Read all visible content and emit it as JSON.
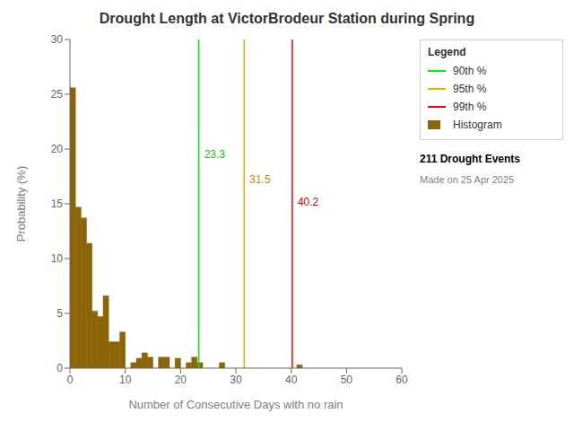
{
  "chart_data": {
    "type": "histogram",
    "title": "Drought Length at VictorBrodeur Station during Spring",
    "xlabel": "Number of Consecutive Days with no rain",
    "ylabel": "Probability (%)",
    "name": "Histogram",
    "color": "#8B6508",
    "bins": [
      0,
      1,
      2,
      3,
      4,
      5,
      6,
      7,
      8,
      9,
      10,
      11,
      12,
      13,
      14,
      15,
      16,
      17,
      18,
      19,
      20,
      21,
      22,
      23,
      24,
      25,
      26,
      27,
      28,
      29,
      30,
      31,
      32,
      33,
      34,
      35,
      36,
      37,
      38,
      39,
      40,
      41,
      42,
      43,
      44,
      45,
      46,
      47,
      48,
      49,
      50,
      51,
      52,
      53,
      54,
      55,
      56,
      57,
      58,
      59,
      60
    ],
    "values": [
      25.6,
      14.7,
      13.7,
      11.4,
      5.2,
      4.7,
      6.6,
      2.4,
      2.4,
      3.3,
      0.0,
      0.5,
      0.9,
      1.4,
      1.0,
      0.0,
      1.0,
      1.0,
      0.0,
      0.9,
      0.0,
      0.5,
      1.0,
      0.5,
      0.0,
      0.0,
      0.0,
      0.5,
      0.0,
      0.0,
      0.0,
      0.0,
      0.0,
      0.0,
      0.0,
      0.0,
      0.0,
      0.0,
      0.0,
      0.0,
      0.0,
      0.3,
      0.0,
      0.0,
      0.0,
      0.0,
      0.0,
      0.0,
      0.0,
      0.0,
      0.0,
      0.0,
      0.0,
      0.0,
      0.0,
      0.0,
      0.0,
      0.0,
      0.0,
      0.0
    ],
    "xlim": [
      0,
      60
    ],
    "ylim": [
      0,
      30
    ],
    "xticks": [
      0,
      10,
      20,
      30,
      40,
      50,
      60
    ],
    "yticks": [
      0,
      5,
      10,
      15,
      20,
      25,
      30
    ],
    "grid": false,
    "legend": "right",
    "legend_title": "Legend",
    "lines": [
      {
        "name": "90th %",
        "x": 23.3,
        "color": "#00ee00",
        "label": "23.3",
        "label_y": 19.5,
        "label_color": "#00cc00"
      },
      {
        "name": "95th %",
        "x": 31.5,
        "color": "#ffa500",
        "label": "31.5",
        "label_y": 17.2,
        "label_color": "#cc8800"
      },
      {
        "name": "99th %",
        "x": 40.2,
        "color": "#ff0000",
        "label": "40.2",
        "label_y": 15.2,
        "label_color": "#dd0000"
      }
    ],
    "annotations": [
      "211 Drought Events",
      "Made on 25 Apr 2025"
    ]
  }
}
